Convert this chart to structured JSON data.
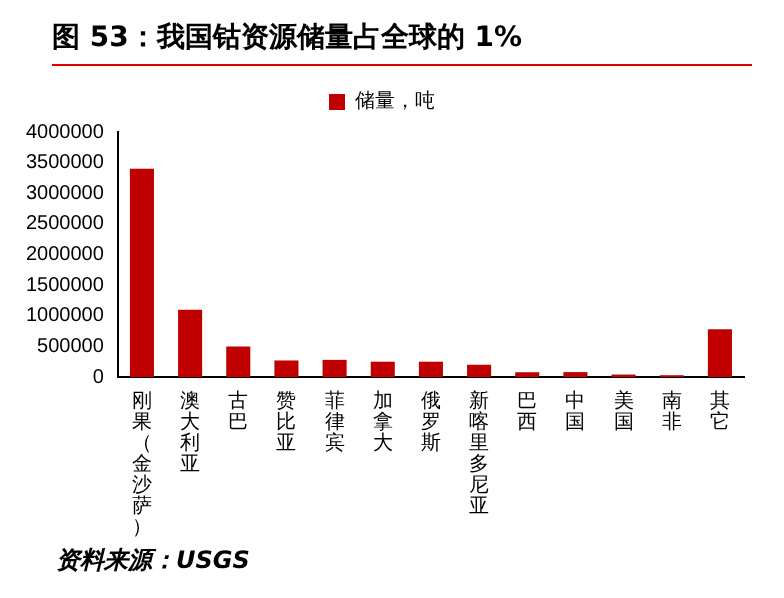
{
  "chart_data": {
    "type": "bar",
    "title": "图 53：我国钴资源储量占全球的 1%",
    "categories": [
      "刚果（金沙萨）",
      "澳大利亚",
      "古巴",
      "赞比亚",
      "菲律宾",
      "加拿大",
      "俄罗斯",
      "新喀里多尼亚",
      "巴西",
      "中国",
      "美国",
      "南非",
      "其它"
    ],
    "series": [
      {
        "name": "储量，吨",
        "color": "#c00000",
        "values": [
          3400000,
          1100000,
          500000,
          270000,
          280000,
          250000,
          250000,
          200000,
          78000,
          80000,
          40000,
          29000,
          780000
        ]
      }
    ],
    "ylim": [
      0,
      4000000
    ],
    "yticks": [
      0,
      500000,
      1000000,
      1500000,
      2000000,
      2500000,
      3000000,
      3500000,
      4000000
    ],
    "grid": false,
    "legend": "top",
    "annotations": [
      "资料来源：USGS"
    ]
  }
}
